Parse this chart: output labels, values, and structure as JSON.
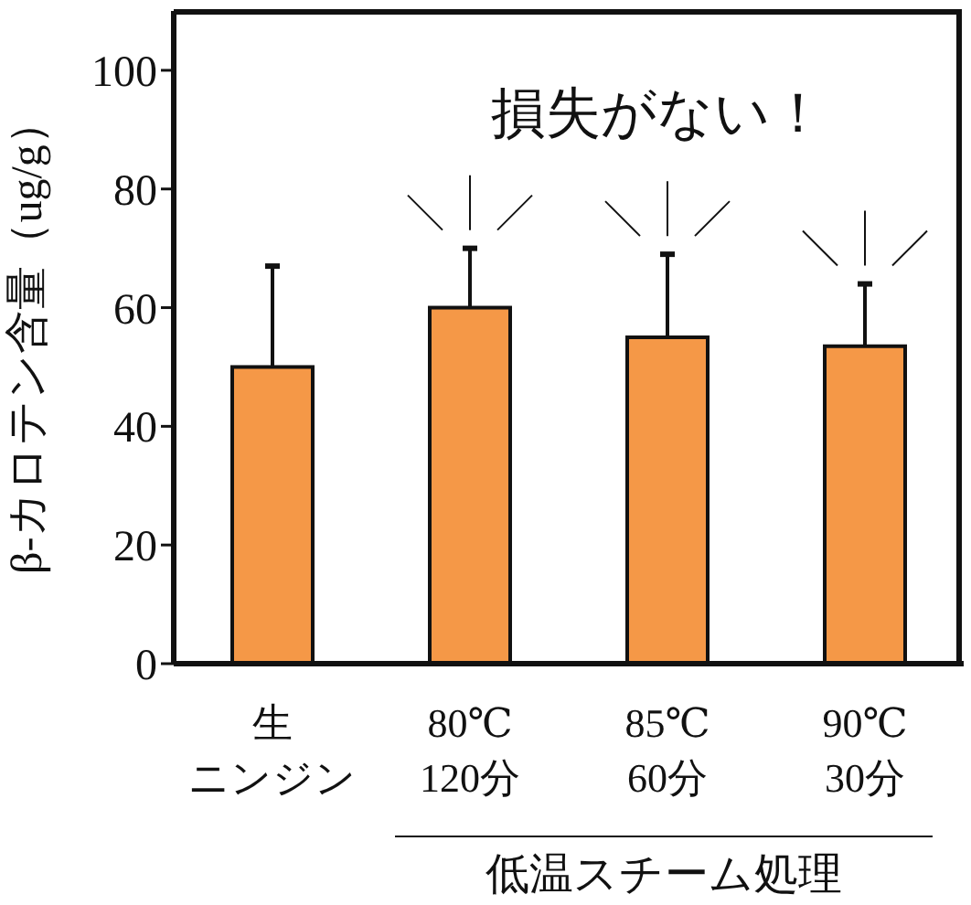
{
  "chart_data": {
    "type": "bar",
    "categories": [
      "生ニンジン",
      "80℃\n120分",
      "85℃\n60分",
      "90℃\n30分"
    ],
    "values": [
      50,
      60,
      55,
      53.5
    ],
    "errors": [
      17,
      10,
      14,
      10.5
    ],
    "color": "#f59847",
    "ylabel": "β-カロテン含量（ug/g）",
    "ylim": [
      0,
      110
    ],
    "yticks": [
      0,
      20,
      40,
      60,
      80,
      100
    ],
    "annotations": [
      "損失がない！",
      "低温スチーム処理"
    ],
    "grid": false,
    "legend": false
  }
}
